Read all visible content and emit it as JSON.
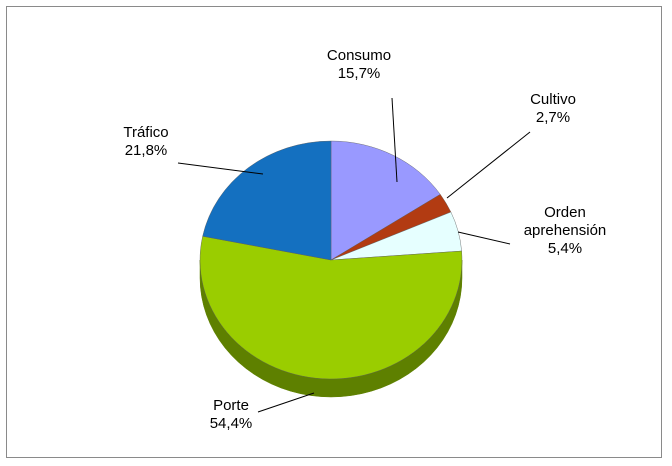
{
  "chart_data": {
    "type": "pie",
    "title": "",
    "slices": [
      {
        "label": "Consumo",
        "value": 15.7,
        "value_label": "15,7%",
        "color": "#9999FF",
        "side_color": "#6f6fc0"
      },
      {
        "label": "Cultivo",
        "value": 2.7,
        "value_label": "2,7%",
        "color": "#B23B12",
        "side_color": "#7a280c"
      },
      {
        "label": "Orden aprehensión",
        "label_lines": [
          "Orden",
          "aprehensión"
        ],
        "value": 5.4,
        "value_label": "5,4%",
        "color": "#E6FFFF",
        "side_color": "#a8c4c4"
      },
      {
        "label": "Porte",
        "value": 54.4,
        "value_label": "54,4%",
        "color": "#9ACD00",
        "side_color": "#5e8000"
      },
      {
        "label": "Tráfico",
        "value": 21.8,
        "value_label": "21,8%",
        "color": "#1470C0",
        "side_color": "#0c4a80"
      }
    ],
    "legend": "none",
    "style": "3d-pie"
  }
}
